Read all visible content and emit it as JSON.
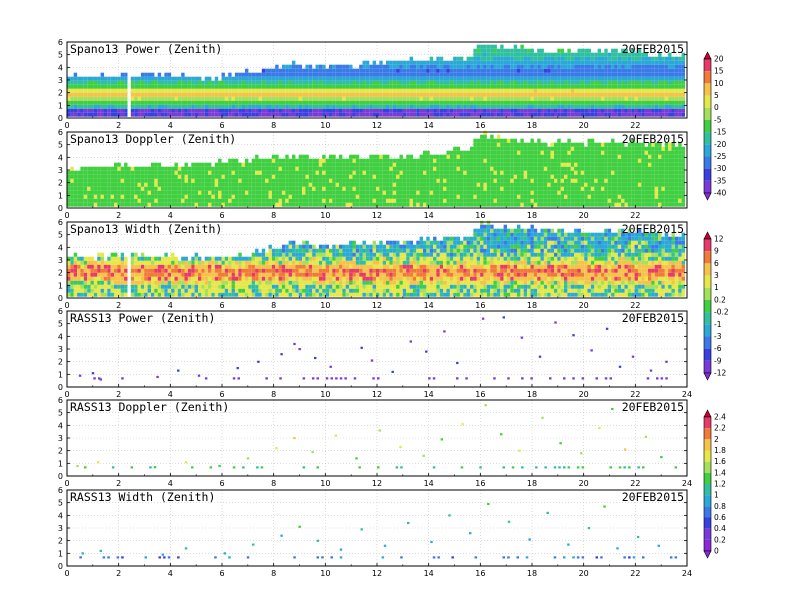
{
  "chart_data": [
    {
      "type": "heatmap",
      "title": "Spano13 Power (Zenith)",
      "date": "20FEB2015",
      "xlim": [
        0,
        24
      ],
      "ylim": [
        0,
        6
      ],
      "x_ticks": [
        "0",
        "2",
        "4",
        "6",
        "8",
        "10",
        "12",
        "14",
        "16",
        "18",
        "20",
        "22"
      ],
      "y_ticks": [
        "0",
        "1",
        "2",
        "3",
        "4",
        "5",
        "6"
      ],
      "grid": true,
      "colorbar": "cb1",
      "top_profile": [
        [
          0,
          3.1
        ],
        [
          1.5,
          3.1
        ],
        [
          2.3,
          3.4
        ],
        [
          3.5,
          3.2
        ],
        [
          5.5,
          3.0
        ],
        [
          7,
          3.4
        ],
        [
          8.5,
          4.1
        ],
        [
          10,
          3.9
        ],
        [
          12,
          4.2
        ],
        [
          14,
          4.5
        ],
        [
          15.5,
          4.6
        ],
        [
          16,
          5.7
        ],
        [
          17.5,
          5.3
        ],
        [
          19,
          5.2
        ],
        [
          21,
          5.1
        ],
        [
          23.8,
          4.8
        ]
      ],
      "field": [
        {
          "h": 0.35,
          "v": -40
        },
        {
          "h": 0.7,
          "v": -20
        },
        {
          "h": 1.2,
          "v": -8
        },
        {
          "h": 1.6,
          "v": 8
        },
        {
          "h": 2.0,
          "v": 3
        },
        {
          "h": 2.4,
          "v": -10
        },
        {
          "h": 2.9,
          "v": -22
        },
        {
          "h": 3.4,
          "v": -30
        },
        {
          "h": 4.2,
          "v": -22
        },
        {
          "h": 5.2,
          "v": -16
        }
      ],
      "gaps": [
        [
          2.3,
          2.45
        ]
      ]
    },
    {
      "type": "heatmap",
      "title": "Spano13 Doppler (Zenith)",
      "date": "20FEB2015",
      "xlim": [
        0,
        24
      ],
      "ylim": [
        0,
        6
      ],
      "x_ticks": [
        "0",
        "2",
        "4",
        "6",
        "8",
        "10",
        "12",
        "14",
        "16",
        "18",
        "20",
        "22"
      ],
      "y_ticks": [
        "0",
        "1",
        "2",
        "3",
        "4",
        "5",
        "6"
      ],
      "grid": true,
      "colorbar": "cb1",
      "top_profile": [
        [
          0,
          3.0
        ],
        [
          2,
          3.1
        ],
        [
          4,
          3.2
        ],
        [
          6,
          3.5
        ],
        [
          8,
          4.0
        ],
        [
          10,
          3.8
        ],
        [
          12,
          3.9
        ],
        [
          14,
          4.1
        ],
        [
          15.5,
          4.5
        ],
        [
          16,
          5.6
        ],
        [
          18,
          5.0
        ],
        [
          22,
          5.0
        ],
        [
          23.8,
          4.8
        ]
      ],
      "field": [
        {
          "h": 1.0,
          "v": -5
        },
        {
          "h": 3.0,
          "v": -6
        },
        {
          "h": 5.0,
          "v": -7
        }
      ],
      "gaps": []
    },
    {
      "type": "heatmap",
      "title": "Spano13 Width (Zenith)",
      "date": "20FEB2015",
      "xlim": [
        0,
        24
      ],
      "ylim": [
        0,
        6
      ],
      "x_ticks": [
        "0",
        "2",
        "4",
        "6",
        "8",
        "10",
        "12",
        "14",
        "16",
        "18",
        "20",
        "22"
      ],
      "y_ticks": [
        "0",
        "1",
        "2",
        "3",
        "4",
        "5",
        "6"
      ],
      "grid": true,
      "colorbar": "cb2",
      "top_profile": [
        [
          0,
          3.1
        ],
        [
          1.5,
          3.1
        ],
        [
          2.3,
          3.4
        ],
        [
          3.5,
          3.2
        ],
        [
          5.5,
          3.0
        ],
        [
          7,
          3.4
        ],
        [
          8.5,
          4.1
        ],
        [
          10,
          3.9
        ],
        [
          12,
          4.2
        ],
        [
          14,
          4.5
        ],
        [
          15.5,
          4.6
        ],
        [
          16,
          5.7
        ],
        [
          17.5,
          5.3
        ],
        [
          19,
          5.2
        ],
        [
          21,
          5.1
        ],
        [
          23.8,
          4.8
        ]
      ],
      "field": [
        {
          "h": 0.8,
          "v": 0.5
        },
        {
          "h": 1.5,
          "v": 5
        },
        {
          "h": 2.0,
          "v": 7
        },
        {
          "h": 2.6,
          "v": 2
        },
        {
          "h": 3.2,
          "v": -0.5
        },
        {
          "h": 4.5,
          "v": -1.5
        }
      ],
      "gaps": [
        [
          2.3,
          2.45
        ]
      ]
    },
    {
      "type": "scatter",
      "title": "RASS13 Power (Zenith)",
      "date": "20FEB2015",
      "xlim": [
        0,
        24
      ],
      "ylim": [
        0,
        6
      ],
      "x_ticks": [
        "0",
        "2",
        "4",
        "6",
        "8",
        "10",
        "12",
        "14",
        "16",
        "18",
        "20",
        "22",
        "24"
      ],
      "y_ticks": [
        "0",
        "1",
        "2",
        "3",
        "4",
        "5",
        "6"
      ],
      "grid": true,
      "colorbar": "cb2",
      "base_value": -11,
      "points": [
        [
          0.5,
          0.9,
          -10
        ],
        [
          1.0,
          1.1,
          -9
        ],
        [
          1.3,
          0.6,
          -11
        ],
        [
          3.5,
          0.8,
          -10
        ],
        [
          4.3,
          1.3,
          -9
        ],
        [
          5.1,
          0.9,
          -10
        ],
        [
          6.6,
          1.5,
          -9
        ],
        [
          7.4,
          2.0,
          -8
        ],
        [
          8.3,
          2.6,
          -9
        ],
        [
          8.8,
          3.4,
          -10
        ],
        [
          9.0,
          3.0,
          -10
        ],
        [
          9.6,
          2.3,
          -9
        ],
        [
          10.2,
          1.6,
          -11
        ],
        [
          11.4,
          3.1,
          -9
        ],
        [
          11.8,
          2.1,
          -10
        ],
        [
          12.6,
          1.2,
          -9
        ],
        [
          13.3,
          3.6,
          -10
        ],
        [
          13.9,
          2.8,
          -8
        ],
        [
          14.6,
          4.4,
          -10
        ],
        [
          15.1,
          1.9,
          -9
        ],
        [
          16.1,
          5.4,
          -10
        ],
        [
          16.9,
          5.5,
          -9
        ],
        [
          17.6,
          3.9,
          -10
        ],
        [
          18.3,
          2.4,
          -9
        ],
        [
          18.9,
          5.1,
          -10
        ],
        [
          19.6,
          4.1,
          -9
        ],
        [
          20.3,
          2.9,
          -10
        ],
        [
          20.9,
          4.6,
          -9
        ],
        [
          21.4,
          1.6,
          -9
        ],
        [
          21.9,
          2.4,
          -10
        ],
        [
          22.6,
          1.3,
          -11
        ],
        [
          23.2,
          2.0,
          -10
        ]
      ]
    },
    {
      "type": "scatter",
      "title": "RASS13 Doppler (Zenith)",
      "date": "20FEB2015",
      "xlim": [
        0,
        24
      ],
      "ylim": [
        0,
        6
      ],
      "x_ticks": [
        "0",
        "2",
        "4",
        "6",
        "8",
        "10",
        "12",
        "14",
        "16",
        "18",
        "20",
        "22",
        "24"
      ],
      "y_ticks": [
        "0",
        "1",
        "2",
        "3",
        "4",
        "5",
        "6"
      ],
      "grid": true,
      "colorbar": "cb3",
      "base_value": 1.2,
      "points": [
        [
          0.4,
          0.8,
          1.4
        ],
        [
          1.2,
          1.1,
          1.6
        ],
        [
          3.4,
          0.7,
          1.2
        ],
        [
          4.6,
          1.1,
          1.6
        ],
        [
          5.9,
          0.8,
          1.2
        ],
        [
          7.0,
          1.4,
          1.4
        ],
        [
          8.1,
          2.2,
          1.6
        ],
        [
          8.8,
          3.0,
          1.8
        ],
        [
          9.5,
          1.9,
          1.4
        ],
        [
          10.4,
          3.2,
          1.6
        ],
        [
          11.2,
          1.4,
          1.2
        ],
        [
          12.1,
          3.6,
          1.4
        ],
        [
          12.9,
          2.3,
          1.6
        ],
        [
          13.8,
          1.6,
          1.4
        ],
        [
          14.5,
          2.9,
          1.2
        ],
        [
          15.3,
          4.1,
          1.6
        ],
        [
          16.2,
          5.6,
          1.4
        ],
        [
          16.8,
          3.3,
          1.2
        ],
        [
          17.5,
          2.0,
          1.6
        ],
        [
          18.4,
          4.6,
          1.4
        ],
        [
          19.1,
          2.6,
          1.2
        ],
        [
          19.9,
          1.8,
          1.4
        ],
        [
          20.6,
          3.8,
          1.6
        ],
        [
          21.1,
          5.3,
          1.2
        ],
        [
          21.6,
          2.1,
          1.8
        ],
        [
          22.4,
          3.1,
          1.4
        ],
        [
          23.0,
          1.5,
          1.2
        ]
      ]
    },
    {
      "type": "scatter",
      "title": "RASS13 Width (Zenith)",
      "date": "20FEB2015",
      "xlim": [
        0,
        24
      ],
      "ylim": [
        0,
        6
      ],
      "x_ticks": [
        "0",
        "2",
        "4",
        "6",
        "8",
        "10",
        "12",
        "14",
        "16",
        "18",
        "20",
        "22",
        "24"
      ],
      "y_ticks": [
        "0",
        "1",
        "2",
        "3",
        "4",
        "5",
        "6"
      ],
      "grid": true,
      "colorbar": "cb3",
      "base_value": 0.7,
      "points": [
        [
          0.6,
          1.0,
          0.8
        ],
        [
          1.3,
          1.2,
          1.0
        ],
        [
          3.7,
          0.9,
          0.8
        ],
        [
          4.6,
          1.4,
          1.0
        ],
        [
          6.1,
          1.0,
          0.8
        ],
        [
          7.2,
          1.7,
          1.0
        ],
        [
          8.3,
          2.4,
          0.8
        ],
        [
          9.0,
          3.1,
          1.2
        ],
        [
          9.7,
          2.0,
          1.0
        ],
        [
          10.6,
          1.3,
          0.8
        ],
        [
          11.4,
          2.9,
          1.0
        ],
        [
          12.3,
          1.6,
          0.8
        ],
        [
          13.2,
          3.4,
          1.0
        ],
        [
          14.1,
          1.9,
          0.8
        ],
        [
          14.8,
          4.0,
          1.0
        ],
        [
          15.6,
          2.6,
          0.8
        ],
        [
          16.3,
          4.9,
          1.2
        ],
        [
          17.1,
          3.5,
          1.0
        ],
        [
          17.9,
          2.1,
          0.8
        ],
        [
          18.6,
          4.2,
          1.0
        ],
        [
          19.4,
          1.7,
          0.8
        ],
        [
          20.2,
          3.0,
          1.0
        ],
        [
          20.8,
          4.7,
          1.2
        ],
        [
          21.3,
          1.4,
          0.8
        ],
        [
          22.1,
          2.3,
          1.0
        ],
        [
          22.9,
          1.6,
          0.8
        ]
      ]
    }
  ],
  "colorbars": {
    "cb1": {
      "labels": [
        "20",
        "15",
        "10",
        "5",
        "0",
        "-5",
        "-15",
        "-20",
        "-25",
        "-30",
        "-35",
        "-40"
      ],
      "values": [
        20,
        15,
        10,
        5,
        0,
        -5,
        -15,
        -20,
        -25,
        -30,
        -35,
        -40
      ],
      "colors": [
        "#cc0033",
        "#e83a6a",
        "#f07a3a",
        "#f6c24a",
        "#e6e84a",
        "#a4e05a",
        "#40cf40",
        "#30c0a0",
        "#2aa8d8",
        "#3a7ae8",
        "#3a40e0",
        "#7a3ad8",
        "#8a2ad8"
      ]
    },
    "cb2": {
      "labels": [
        "12",
        "9",
        "6",
        "3",
        "1",
        "0.2",
        "-0.2",
        "-1",
        "-3",
        "-6",
        "-9",
        "-12"
      ],
      "values": [
        12,
        9,
        6,
        3,
        1,
        0.2,
        -0.2,
        -1,
        -3,
        -6,
        -9,
        -12
      ],
      "colors": [
        "#cc0033",
        "#e83a6a",
        "#f07a3a",
        "#f6c24a",
        "#e6e84a",
        "#a4e05a",
        "#40cf40",
        "#30c0a0",
        "#2aa8d8",
        "#3a7ae8",
        "#3a40e0",
        "#7a3ad8",
        "#8a2ad8"
      ]
    },
    "cb3": {
      "labels": [
        "2.4",
        "2.2",
        "2",
        "1.8",
        "1.6",
        "1.4",
        "1.2",
        "1",
        "0.8",
        "0.6",
        "0.4",
        "0.2",
        "0"
      ],
      "values": [
        2.4,
        2.2,
        2.0,
        1.8,
        1.6,
        1.4,
        1.2,
        1.0,
        0.8,
        0.6,
        0.4,
        0.2,
        0
      ],
      "colors": [
        "#cc0033",
        "#e83a6a",
        "#f07a3a",
        "#f6c24a",
        "#e6e84a",
        "#a4e05a",
        "#40cf40",
        "#30c0a0",
        "#2aa8d8",
        "#3a7ae8",
        "#3a40e0",
        "#7a3ad8",
        "#8a2ad8",
        "#8a2ad8"
      ]
    }
  }
}
